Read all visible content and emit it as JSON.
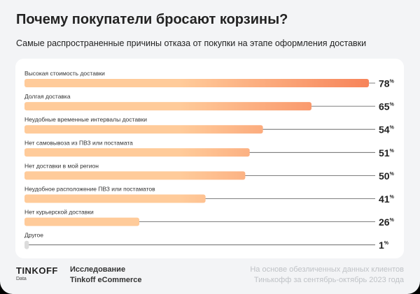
{
  "chart_data": {
    "type": "bar",
    "orientation": "horizontal",
    "title": "Почему покупатели бросают корзины?",
    "subtitle": "Самые распространенные причины отказа от покупки на этапе оформления доставки",
    "categories": [
      "Высокая стоимость доставки",
      "Долгая доставка",
      "Неудобные временные интервалы доставки",
      "Нет самовывоза из ПВЗ или постамата",
      "Нет доставки в мой регион",
      "Неудобное расположение ПВЗ или постаматов",
      "Нет курьерской доставки",
      "Другое"
    ],
    "values": [
      78,
      65,
      54,
      51,
      50,
      41,
      26,
      1
    ],
    "unit": "%",
    "xlim": [
      0,
      78
    ],
    "grid": false,
    "colors": {
      "bar_start": "#ffcb9a",
      "bar_end": "#f7845a",
      "other_bar": "#dcdcdc",
      "leader_line": "#555555"
    }
  },
  "footer": {
    "logo": "TINKOFF",
    "logo_sub": "Data",
    "study_line1": "Исследование",
    "study_line2": "Tinkoff eCommerce",
    "note_line1": "На основе обезличенных данных клиентов",
    "note_line2": "Тинькофф за сентябрь-октябрь 2023 года"
  }
}
